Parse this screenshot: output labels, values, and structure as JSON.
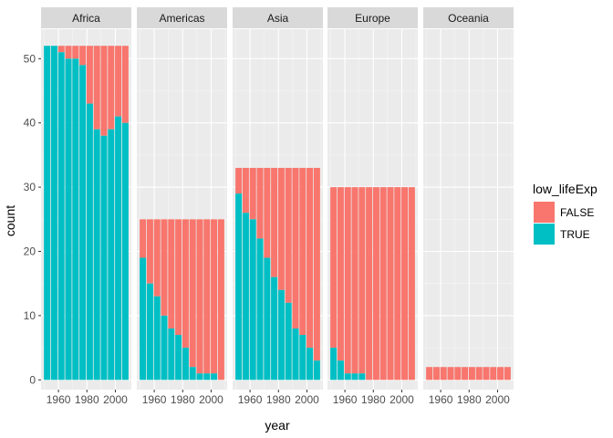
{
  "chart_data": {
    "type": "bar",
    "stacked": true,
    "faceted_by": "continent",
    "xlabel": "year",
    "ylabel": "count",
    "ylim": [
      0,
      55
    ],
    "y_ticks": [
      0,
      10,
      20,
      30,
      40,
      50
    ],
    "x_ticks": [
      1960,
      1980,
      2000
    ],
    "grid": true,
    "legend": {
      "title": "low_lifeExp",
      "placement": "right",
      "entries": [
        {
          "label": "FALSE",
          "color": "#F8766D"
        },
        {
          "label": "TRUE",
          "color": "#00BFC4"
        }
      ]
    },
    "x": [
      1952,
      1957,
      1962,
      1967,
      1972,
      1977,
      1982,
      1987,
      1992,
      1997,
      2002,
      2007
    ],
    "facets": [
      {
        "name": "Africa",
        "total": 52,
        "true_counts": [
          52,
          52,
          51,
          50,
          50,
          49,
          43,
          39,
          38,
          39,
          41,
          40
        ]
      },
      {
        "name": "Americas",
        "total": 25,
        "true_counts": [
          19,
          15,
          13,
          10,
          8,
          7,
          5,
          2,
          1,
          1,
          1,
          0
        ]
      },
      {
        "name": "Asia",
        "total": 33,
        "true_counts": [
          29,
          26,
          25,
          22,
          19,
          16,
          14,
          12,
          8,
          7,
          5,
          3
        ]
      },
      {
        "name": "Europe",
        "total": 30,
        "true_counts": [
          5,
          3,
          1,
          1,
          1,
          0,
          0,
          0,
          0,
          0,
          0,
          0
        ]
      },
      {
        "name": "Oceania",
        "total": 2,
        "true_counts": [
          0,
          0,
          0,
          0,
          0,
          0,
          0,
          0,
          0,
          0,
          0,
          0
        ]
      }
    ],
    "colors": {
      "false": "#F8766D",
      "true": "#00BFC4",
      "panel_bg": "#EBEBEB",
      "strip_bg": "#D9D9D9",
      "grid_major": "#FFFFFF"
    }
  }
}
